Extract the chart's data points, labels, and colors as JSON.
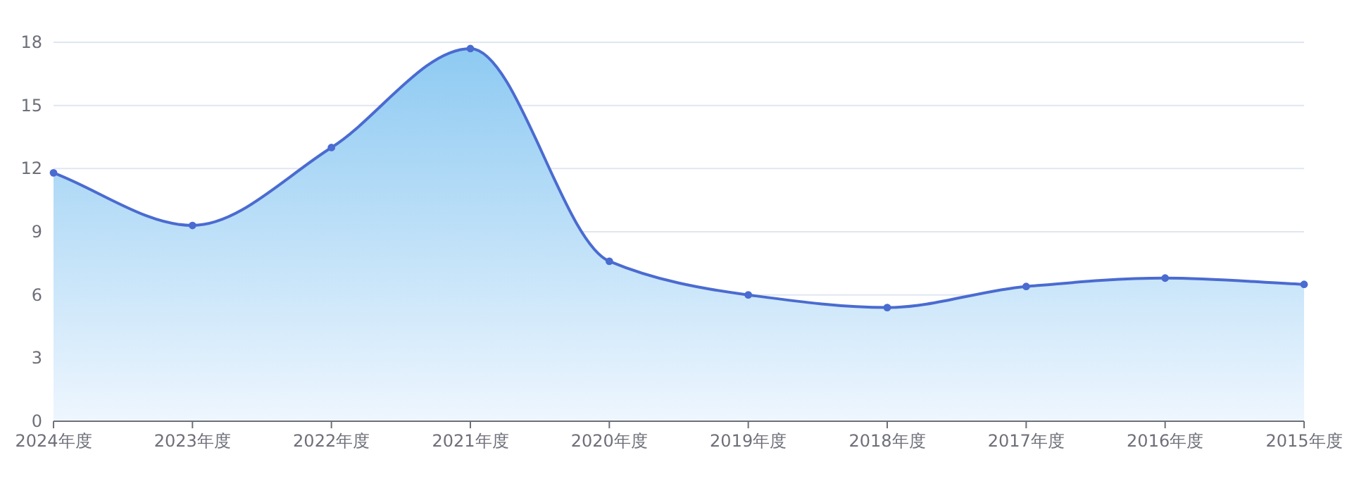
{
  "chart_data": {
    "type": "area",
    "categories": [
      "2024年度",
      "2023年度",
      "2022年度",
      "2021年度",
      "2020年度",
      "2019年度",
      "2018年度",
      "2017年度",
      "2016年度",
      "2015年度"
    ],
    "series": [
      {
        "color": "#4a6bd0",
        "values": [
          11.8,
          9.3,
          13.0,
          17.7,
          7.6,
          6.0,
          5.4,
          6.4,
          6.8,
          6.5
        ]
      }
    ],
    "ylim": [
      0,
      18
    ],
    "yticks": [
      0,
      3,
      6,
      9,
      12,
      15,
      18
    ],
    "grid": "y",
    "marker": "circle"
  }
}
